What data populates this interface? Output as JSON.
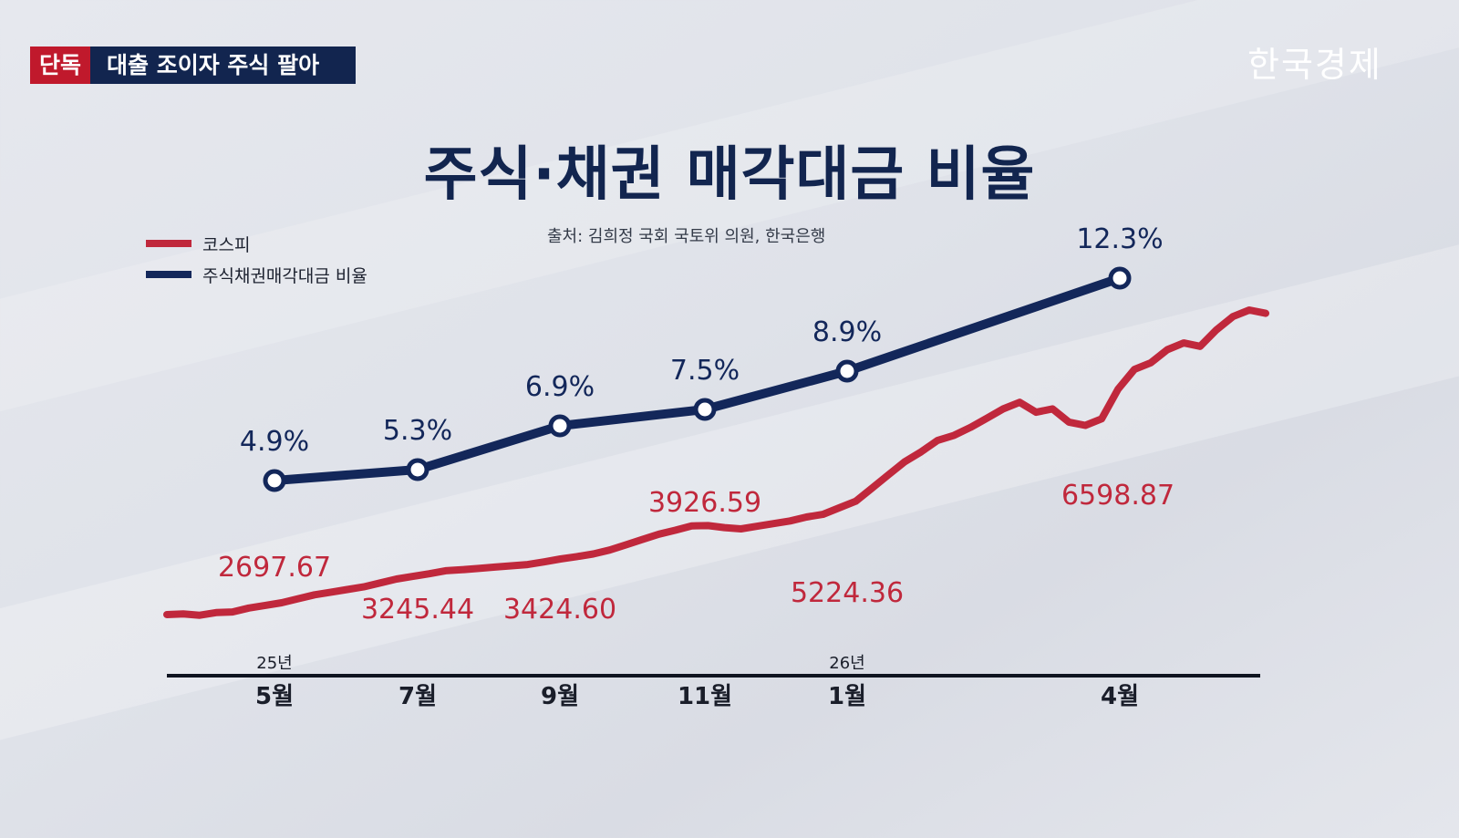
{
  "header": {
    "tag": "단독",
    "headline": "대출 조이자 주식 팔아",
    "logo": "한국경제"
  },
  "chart_data": {
    "type": "line",
    "title": "주식·채권 매각대금 비율",
    "source": "출처: 김희정 국회 국토위 의원, 한국은행",
    "x_ticks": [
      "5월",
      "7월",
      "9월",
      "11월",
      "1월",
      "4월"
    ],
    "year_labels": [
      "25년",
      "26년"
    ],
    "series": [
      {
        "name": "코스피",
        "color": "#c0283c",
        "values": [
          2580,
          2590,
          2570,
          2610,
          2620,
          2680,
          2720,
          2760,
          2820,
          2880,
          2920,
          2960,
          3000,
          3060,
          3120,
          3160,
          3200,
          3245,
          3260,
          3280,
          3300,
          3320,
          3340,
          3380,
          3424,
          3460,
          3500,
          3560,
          3640,
          3720,
          3800,
          3860,
          3926,
          3930,
          3900,
          3880,
          3920,
          3960,
          4000,
          4060,
          4100,
          4200,
          4300,
          4500,
          4700,
          4900,
          5050,
          5224,
          5300,
          5420,
          5560,
          5700,
          5800,
          5650,
          5700,
          5500,
          5450,
          5550,
          6000,
          6300,
          6400,
          6598,
          6700,
          6650,
          6900,
          7100,
          7200,
          7150
        ],
        "labels": [
          {
            "text": "2697.67"
          },
          {
            "text": "3245.44"
          },
          {
            "text": "3424.60"
          },
          {
            "text": "3926.59"
          },
          {
            "text": "5224.36"
          },
          {
            "text": "6598.87"
          }
        ]
      },
      {
        "name": "주식채권매각대금 비율",
        "color": "#13275a",
        "values": [
          4.9,
          5.3,
          6.9,
          7.5,
          8.9,
          12.3
        ],
        "labels": [
          "4.9%",
          "5.3%",
          "6.9%",
          "7.5%",
          "8.9%",
          "12.3%"
        ]
      }
    ],
    "legend_position": "top-left",
    "grid": false
  }
}
